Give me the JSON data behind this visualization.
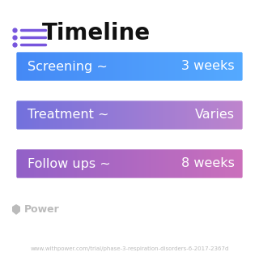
{
  "title": "Timeline",
  "title_fontsize": 20,
  "title_color": "#111111",
  "background_color": "#ffffff",
  "rows": [
    {
      "label": "Screening ~",
      "value": "3 weeks",
      "color_left": "#4488f5",
      "color_right": "#55aaff"
    },
    {
      "label": "Treatment ~",
      "value": "Varies",
      "color_left": "#7070dd",
      "color_right": "#c085cc"
    },
    {
      "label": "Follow ups ~",
      "value": "8 weeks",
      "color_left": "#9060c8",
      "color_right": "#cc70bb"
    }
  ],
  "icon_dot_color": "#7755dd",
  "icon_line_color": "#7755dd",
  "text_fontsize": 11.5,
  "footer_text": "Power",
  "footer_color": "#bbbbbb",
  "url_text": "www.withpower.com/trial/phase-3-respiration-disorders-6-2017-2367d",
  "url_color": "#bbbbbb",
  "url_fontsize": 5.0
}
